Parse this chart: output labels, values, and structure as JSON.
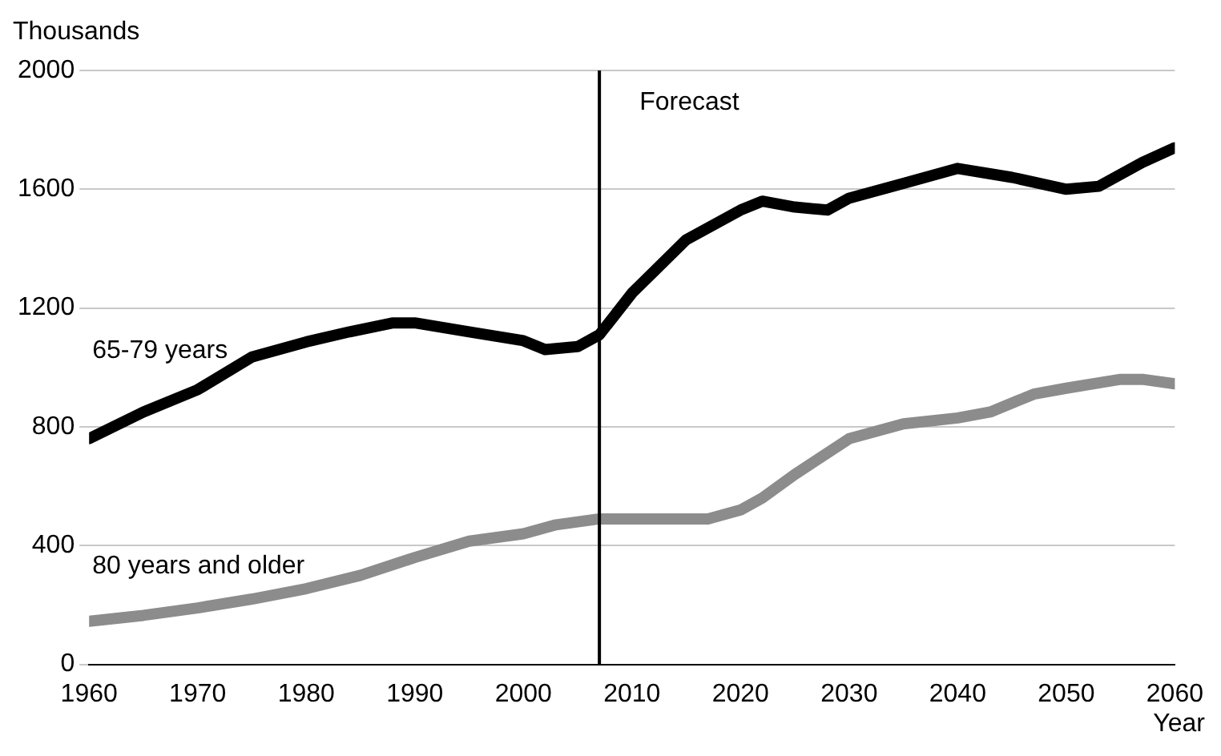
{
  "chart_data": {
    "type": "line",
    "xlabel": "Year",
    "ylabel": "Thousands",
    "xlim": [
      1960,
      2060
    ],
    "xticks": [
      1960,
      1970,
      1980,
      1990,
      2000,
      2010,
      2020,
      2030,
      2040,
      2050,
      2060
    ],
    "ylim": [
      0,
      2000
    ],
    "yticks": [
      0,
      400,
      800,
      1200,
      1600,
      2000
    ],
    "grid": "y",
    "legend": false,
    "marker": "none",
    "line_style": "solid",
    "series": [
      {
        "name": "65-79 years",
        "color": "#000000",
        "x": [
          1960,
          1965,
          1970,
          1975,
          1980,
          1984,
          1988,
          1990,
          1995,
          2000,
          2002,
          2005,
          2007,
          2010,
          2015,
          2020,
          2022,
          2025,
          2028,
          2030,
          2035,
          2040,
          2045,
          2050,
          2053,
          2057,
          2060
        ],
        "values": [
          760,
          850,
          925,
          1035,
          1086,
          1120,
          1150,
          1150,
          1120,
          1090,
          1060,
          1070,
          1110,
          1250,
          1430,
          1530,
          1560,
          1540,
          1530,
          1570,
          1620,
          1670,
          1640,
          1600,
          1610,
          1690,
          1740
        ]
      },
      {
        "name": "80 years and older",
        "color": "#8c8c8c",
        "x": [
          1960,
          1965,
          1970,
          1975,
          1980,
          1985,
          1990,
          1995,
          2000,
          2003,
          2007,
          2010,
          2017,
          2020,
          2022,
          2025,
          2030,
          2035,
          2040,
          2043,
          2047,
          2050,
          2055,
          2057,
          2060
        ],
        "values": [
          145,
          165,
          190,
          220,
          255,
          300,
          360,
          415,
          440,
          470,
          490,
          490,
          490,
          520,
          560,
          640,
          760,
          810,
          830,
          850,
          910,
          930,
          960,
          960,
          945
        ]
      }
    ],
    "ref_lines": [
      {
        "axis": "x",
        "value": 2007,
        "label": "Forecast",
        "color": "#000000"
      }
    ]
  }
}
